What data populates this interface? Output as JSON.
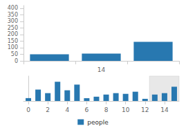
{
  "chart_data": [
    {
      "type": "bar",
      "categories": [
        null,
        "14",
        null
      ],
      "values": [
        50,
        55,
        145
      ],
      "color": "#2878b0",
      "ylim": [
        0,
        420
      ],
      "yticks": [
        0,
        50,
        100,
        150,
        200,
        250,
        300,
        350,
        400
      ],
      "grid": false
    },
    {
      "type": "bar",
      "x": [
        0,
        1,
        2,
        3,
        4,
        5,
        6,
        7,
        8,
        9,
        10,
        11,
        12,
        13,
        14,
        15
      ],
      "series": [
        {
          "name": "people",
          "color": "#2878b0",
          "values": [
            4,
            16,
            11,
            27,
            15,
            23,
            4,
            6,
            9,
            11,
            10,
            13,
            3,
            9,
            11,
            20
          ]
        }
      ],
      "xlim": [
        -0.5,
        15.5
      ],
      "xticks": [
        0,
        2,
        4,
        6,
        8,
        10,
        12,
        14
      ],
      "ylim": [
        0,
        35
      ],
      "grid": false,
      "legend": "bottom",
      "tick_labels": "x",
      "highlight_range": [
        12.45,
        15.55
      ]
    }
  ]
}
